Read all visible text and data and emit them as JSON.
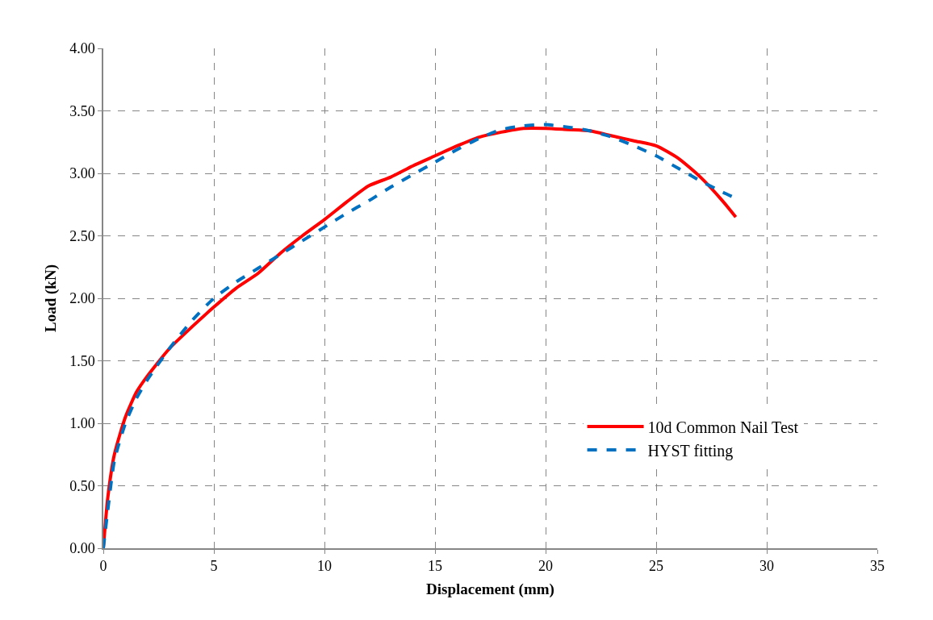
{
  "chart_data": {
    "type": "line",
    "xlabel": "Displacement (mm)",
    "ylabel": "Load (kN)",
    "xlim": [
      0,
      35
    ],
    "xticks": [
      0,
      5,
      10,
      15,
      20,
      25,
      30,
      35
    ],
    "ylim": [
      0,
      4
    ],
    "yticks": [
      {
        "value": 0,
        "label": "0.00"
      },
      {
        "value": 0.5,
        "label": "0.50"
      },
      {
        "value": 1,
        "label": "1.00"
      },
      {
        "value": 1.5,
        "label": "1.50"
      },
      {
        "value": 2,
        "label": "2.00"
      },
      {
        "value": 2.5,
        "label": "2.50"
      },
      {
        "value": 3,
        "label": "3.00"
      },
      {
        "value": 3.5,
        "label": "3.50"
      },
      {
        "value": 4,
        "label": "4.00"
      }
    ],
    "grid": true,
    "legend": "bottom right",
    "marker": "none",
    "series": [
      {
        "name": "10d Common Nail Test",
        "color": "#ff0000",
        "line_style": "solid",
        "x": [
          0,
          0.2,
          0.5,
          1,
          1.5,
          2,
          3,
          4,
          5,
          6,
          7,
          8,
          9,
          10,
          11,
          12,
          13,
          14,
          15,
          16,
          17,
          18,
          19,
          20,
          21,
          22,
          23,
          24,
          25,
          26,
          27,
          28,
          28.6
        ],
        "values": [
          0,
          0.4,
          0.75,
          1.05,
          1.25,
          1.38,
          1.6,
          1.77,
          1.93,
          2.08,
          2.2,
          2.36,
          2.5,
          2.63,
          2.77,
          2.9,
          2.97,
          3.06,
          3.14,
          3.22,
          3.29,
          3.33,
          3.36,
          3.36,
          3.35,
          3.34,
          3.3,
          3.26,
          3.22,
          3.12,
          2.97,
          2.78,
          2.65
        ]
      },
      {
        "name": "HYST fitting",
        "color": "#0070c0",
        "line_style": "dashed",
        "x": [
          0,
          0.2,
          0.5,
          1,
          1.5,
          2,
          3,
          4,
          5,
          6,
          7,
          8,
          9,
          10,
          11,
          12,
          13,
          14,
          15,
          16,
          17,
          18,
          19,
          20,
          21,
          22,
          23,
          24,
          25,
          26,
          27,
          28,
          28.6
        ],
        "values": [
          0,
          0.3,
          0.7,
          1.0,
          1.2,
          1.35,
          1.6,
          1.82,
          2.0,
          2.13,
          2.24,
          2.35,
          2.46,
          2.57,
          2.68,
          2.78,
          2.89,
          2.99,
          3.09,
          3.19,
          3.28,
          3.35,
          3.38,
          3.39,
          3.37,
          3.34,
          3.29,
          3.22,
          3.14,
          3.04,
          2.94,
          2.85,
          2.8
        ]
      }
    ]
  }
}
